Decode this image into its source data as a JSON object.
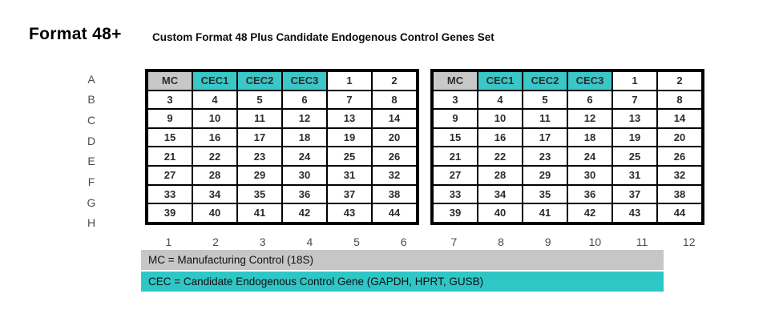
{
  "header": {
    "title": "Format 48+",
    "subtitle": "Custom Format 48 Plus Candidate Endogenous Control Genes Set"
  },
  "plate": {
    "row_labels": [
      "A",
      "B",
      "C",
      "D",
      "E",
      "F",
      "G",
      "H"
    ],
    "column_labels_left": [
      "1",
      "2",
      "3",
      "4",
      "5",
      "6"
    ],
    "column_labels_right": [
      "7",
      "8",
      "9",
      "10",
      "11",
      "12"
    ],
    "header_row": [
      {
        "label": "MC",
        "kind": "mc"
      },
      {
        "label": "CEC1",
        "kind": "cec"
      },
      {
        "label": "CEC2",
        "kind": "cec"
      },
      {
        "label": "CEC3",
        "kind": "cec"
      },
      {
        "label": "1",
        "kind": "plain"
      },
      {
        "label": "2",
        "kind": "plain"
      }
    ],
    "number_rows": [
      [
        "3",
        "4",
        "5",
        "6",
        "7",
        "8"
      ],
      [
        "9",
        "10",
        "11",
        "12",
        "13",
        "14"
      ],
      [
        "15",
        "16",
        "17",
        "18",
        "19",
        "20"
      ],
      [
        "21",
        "22",
        "23",
        "24",
        "25",
        "26"
      ],
      [
        "27",
        "28",
        "29",
        "30",
        "31",
        "32"
      ],
      [
        "33",
        "34",
        "35",
        "36",
        "37",
        "38"
      ],
      [
        "39",
        "40",
        "41",
        "42",
        "43",
        "44"
      ]
    ],
    "blocks": [
      "left",
      "right"
    ]
  },
  "legend": {
    "mc": {
      "text": "MC = Manufacturing Control (18S)",
      "color": "#c6c6c6"
    },
    "cec": {
      "text": "CEC = Candidate Endogenous Control Gene (GAPDH, HPRT, GUSB)",
      "color": "#2fc6c6"
    }
  },
  "colors": {
    "mc_cell": "#c8c8c8",
    "cec_cell": "#3bc7c7",
    "border": "#000000"
  }
}
